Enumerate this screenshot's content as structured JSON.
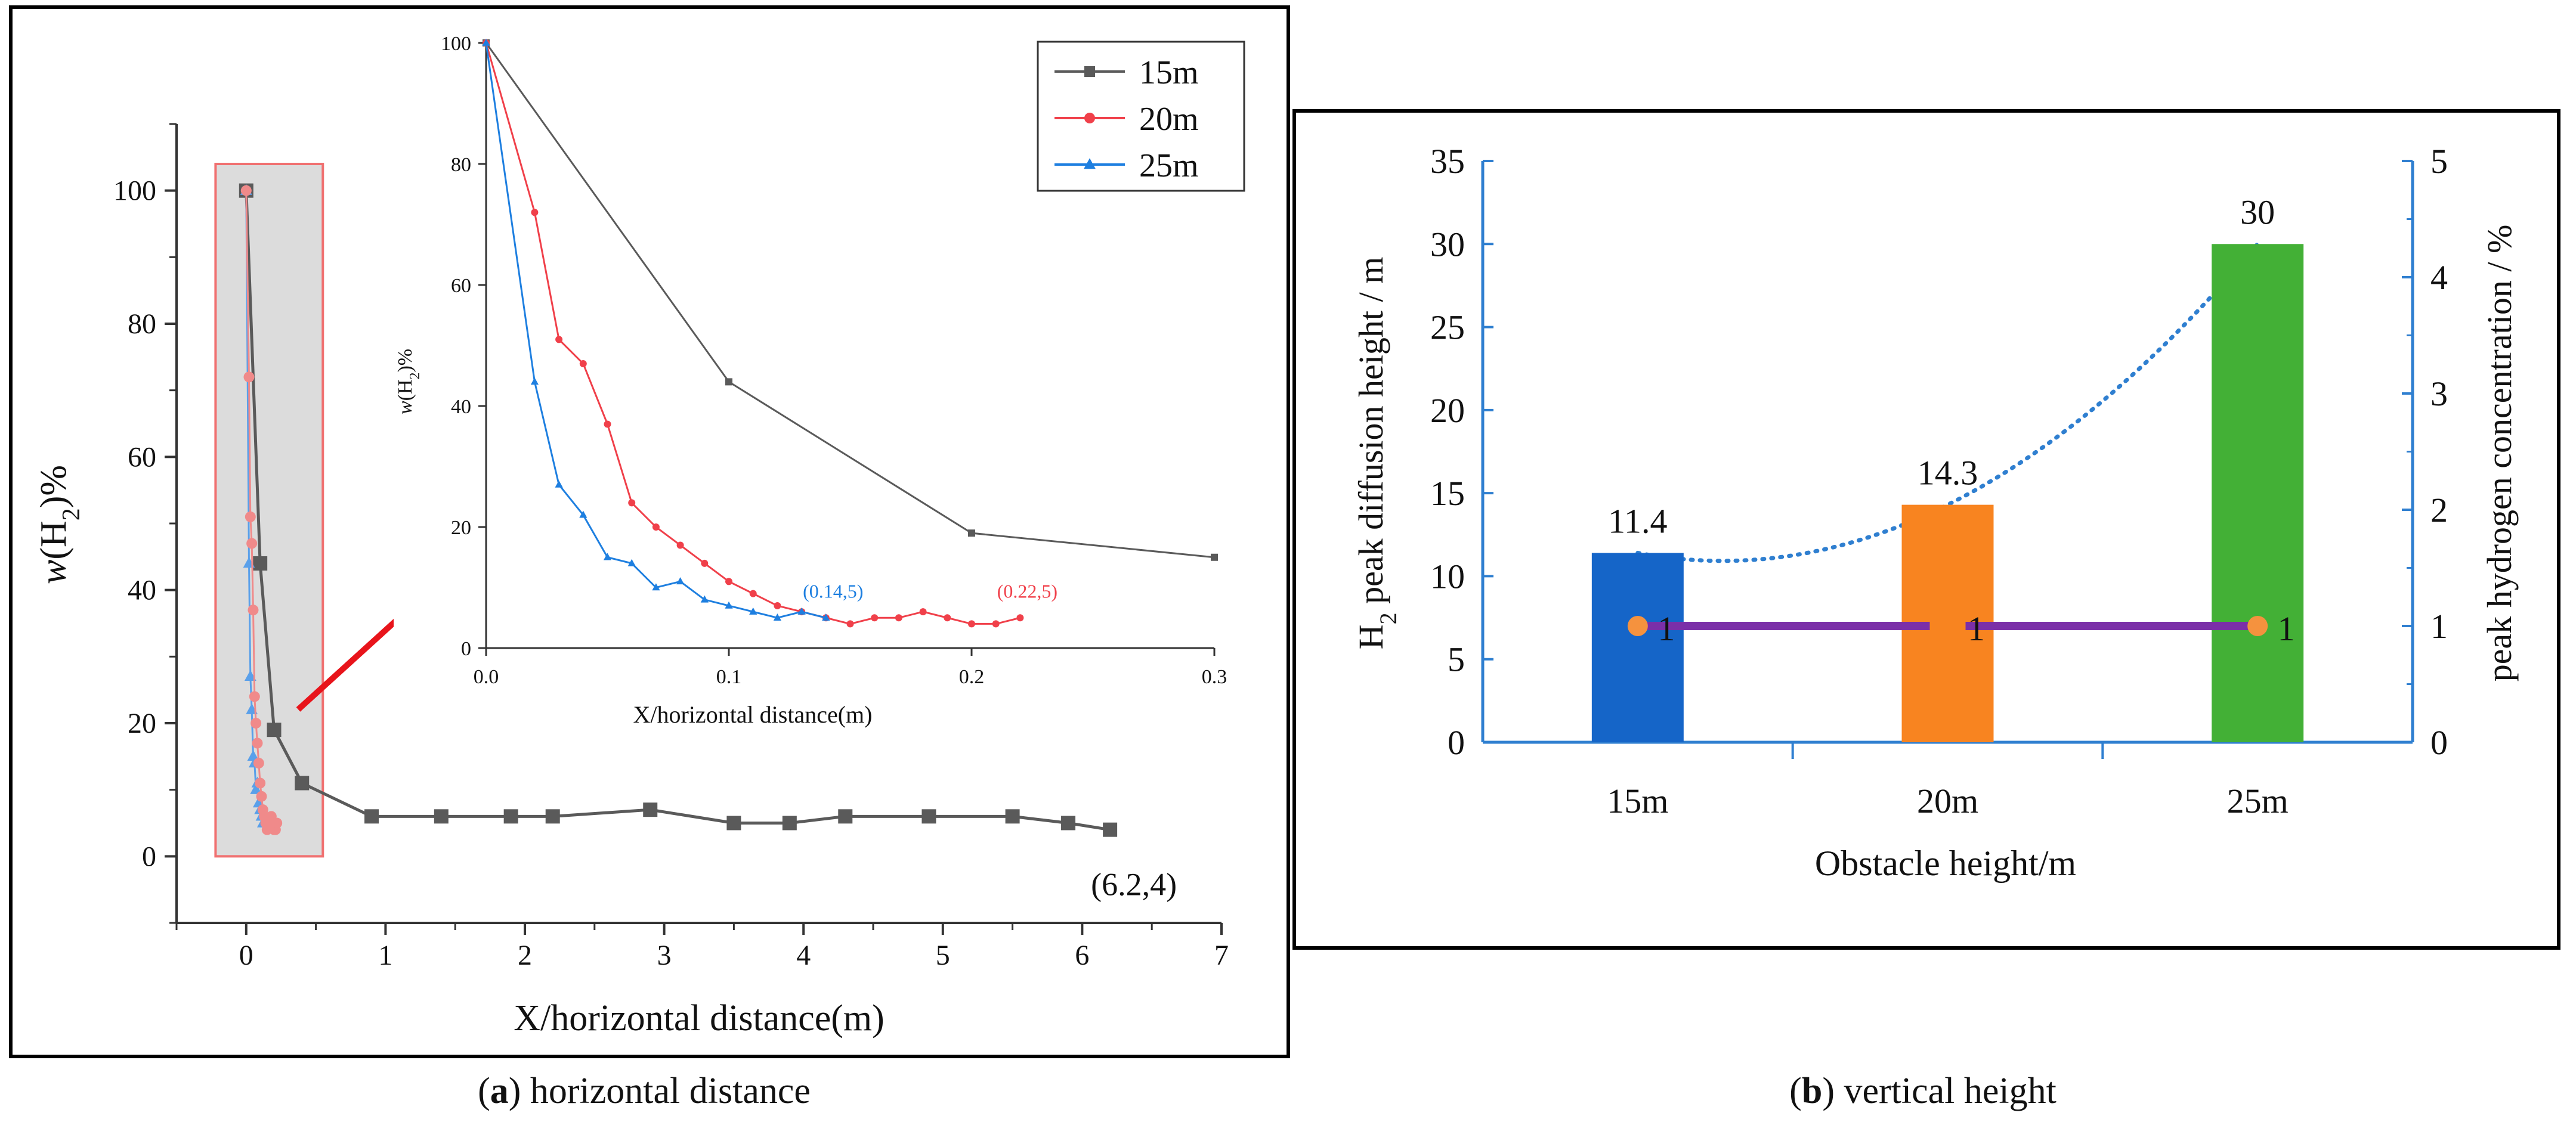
{
  "figure": {
    "caption_a_letter": "a",
    "caption_a_text": "horizontal distance",
    "caption_b_letter": "b",
    "caption_b_text": "vertical height"
  },
  "colors": {
    "s15": "#5a5a5a",
    "s20": "#f0404a",
    "s25": "#1e7fe0",
    "bar15": "#1565c8",
    "bar20": "#f88420",
    "bar25": "#43b036",
    "purple": "#7b2fa8",
    "dot": "#f5923e",
    "blueAxis": "#2f7fd0"
  },
  "chart_data": [
    {
      "type": "line",
      "id": "a_main",
      "title": "",
      "xlabel": "X/horizontal distance(m)",
      "ylabel_italic": "w",
      "ylabel_rest": "(H",
      "ylabel_sub": "2",
      "ylabel_end": ")%",
      "xlim": [
        -0.5,
        7
      ],
      "ylim": [
        -10,
        110
      ],
      "xticks": [
        0,
        1,
        2,
        3,
        4,
        5,
        6,
        7
      ],
      "yticks": [
        0,
        20,
        40,
        60,
        80,
        100
      ],
      "highlight_box": {
        "x": [
          -0.22,
          0.55
        ],
        "y": [
          0,
          104
        ]
      },
      "annotation": {
        "text": "(6.2,4)",
        "x": 6.2,
        "y": 4
      },
      "series": [
        {
          "name": "15m",
          "x": [
            0,
            0.1,
            0.2,
            0.4,
            0.9,
            1.4,
            1.9,
            2.2,
            2.9,
            3.5,
            3.9,
            4.3,
            4.9,
            5.5,
            5.9,
            6.2
          ],
          "y": [
            100,
            44,
            19,
            11,
            6,
            6,
            6,
            6,
            7,
            5,
            5,
            6,
            6,
            6,
            5,
            4
          ]
        },
        {
          "name": "20m",
          "x": [
            0,
            0.02,
            0.03,
            0.04,
            0.05,
            0.06,
            0.07,
            0.08,
            0.09,
            0.1,
            0.11,
            0.12,
            0.13,
            0.14,
            0.15,
            0.16,
            0.17,
            0.18,
            0.19,
            0.2,
            0.21,
            0.22
          ],
          "y": [
            100,
            72,
            51,
            47,
            37,
            24,
            20,
            17,
            14,
            11,
            9,
            7,
            6,
            5,
            4,
            5,
            5,
            6,
            5,
            4,
            4,
            5
          ]
        },
        {
          "name": "25m",
          "x": [
            0,
            0.02,
            0.03,
            0.04,
            0.05,
            0.06,
            0.07,
            0.08,
            0.09,
            0.1,
            0.11,
            0.12,
            0.13,
            0.14
          ],
          "y": [
            100,
            44,
            27,
            22,
            15,
            14,
            10,
            11,
            8,
            7,
            6,
            5,
            6,
            5
          ]
        }
      ]
    },
    {
      "type": "line",
      "id": "a_inset",
      "xlabel": "X/horizontal distance(m)",
      "ylabel_italic": "w",
      "ylabel_rest": "(H",
      "ylabel_sub": "2",
      "ylabel_end": ")%",
      "xlim": [
        0,
        0.3
      ],
      "ylim": [
        0,
        100
      ],
      "xticks": [
        0.0,
        0.1,
        0.2,
        0.3
      ],
      "xtick_labels": [
        "0.0",
        "0.1",
        "0.2",
        "0.3"
      ],
      "yticks": [
        0,
        20,
        40,
        60,
        80,
        100
      ],
      "legend": [
        "15m",
        "20m",
        "25m"
      ],
      "annotations": [
        {
          "text": "(0.14,5)",
          "x": 0.14,
          "y": 5,
          "series": "25m"
        },
        {
          "text": "(0.22,5)",
          "x": 0.22,
          "y": 5,
          "series": "20m"
        }
      ],
      "series": [
        {
          "name": "15m",
          "x": [
            0,
            0.1,
            0.2,
            0.3
          ],
          "y": [
            100,
            44,
            19,
            15
          ]
        },
        {
          "name": "20m",
          "x": [
            0,
            0.02,
            0.03,
            0.04,
            0.05,
            0.06,
            0.07,
            0.08,
            0.09,
            0.1,
            0.11,
            0.12,
            0.13,
            0.14,
            0.15,
            0.16,
            0.17,
            0.18,
            0.19,
            0.2,
            0.21,
            0.22
          ],
          "y": [
            100,
            72,
            51,
            47,
            37,
            24,
            20,
            17,
            14,
            11,
            9,
            7,
            6,
            5,
            4,
            5,
            5,
            6,
            5,
            4,
            4,
            5
          ]
        },
        {
          "name": "25m",
          "x": [
            0,
            0.02,
            0.03,
            0.04,
            0.05,
            0.06,
            0.07,
            0.08,
            0.09,
            0.1,
            0.11,
            0.12,
            0.13,
            0.14
          ],
          "y": [
            100,
            44,
            27,
            22,
            15,
            14,
            10,
            11,
            8,
            7,
            6,
            5,
            6,
            5
          ]
        }
      ]
    },
    {
      "type": "bar",
      "id": "b",
      "xlabel": "Obstacle height/m",
      "ylabel_left_pre": "H",
      "ylabel_left_sub": "2",
      "ylabel_left_post": " peak diffusion height / m",
      "ylabel_right": "peak hydrogen concentration / %",
      "categories": [
        "15m",
        "20m",
        "25m"
      ],
      "values": [
        11.4,
        14.3,
        30
      ],
      "value_labels": [
        "11.4",
        "14.3",
        "30"
      ],
      "ylim_left": [
        0,
        35
      ],
      "yticks_left": [
        0,
        5,
        10,
        15,
        20,
        25,
        30,
        35
      ],
      "ylim_right": [
        0,
        5
      ],
      "yticks_right": [
        0,
        1,
        2,
        3,
        4,
        5
      ],
      "concentration": [
        1,
        1,
        1
      ],
      "concentration_labels": [
        "1",
        "1",
        "1"
      ],
      "trend": "dotted curve through bar tops"
    }
  ]
}
